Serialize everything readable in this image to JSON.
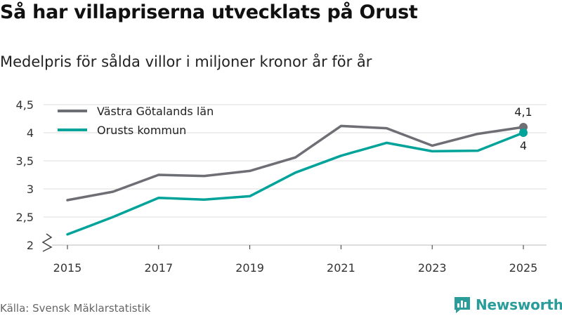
{
  "header": {
    "title": "Så har villapriserna utvecklats på Orust",
    "subtitle": "Medelpris för sålda villor i miljoner kronor år för år"
  },
  "footer": {
    "source": "Källa: Svensk Mäklarstatistik",
    "brand": "Newsworthy"
  },
  "colors": {
    "vastra": "#6e6e75",
    "orust": "#00a39a",
    "grid": "#dcdcdc",
    "brand": "#2a9d9a"
  },
  "chart_data": {
    "type": "line",
    "title": "Så har villapriserna utvecklats på Orust",
    "subtitle": "Medelpris för sålda villor i miljoner kronor år för år",
    "xlabel": "",
    "ylabel": "",
    "x": [
      2015,
      2016,
      2017,
      2018,
      2019,
      2020,
      2021,
      2022,
      2023,
      2024,
      2025
    ],
    "xticks": [
      2015,
      2017,
      2019,
      2021,
      2023,
      2025
    ],
    "xtick_labels": [
      "2015",
      "2017",
      "2019",
      "2021",
      "2023",
      "2025"
    ],
    "ylim": [
      2,
      4.5
    ],
    "yticks": [
      2,
      2.5,
      3,
      3.5,
      4,
      4.5
    ],
    "ytick_labels": [
      "2",
      "2,5",
      "3",
      "3,5",
      "4",
      "4,5"
    ],
    "axis_break": true,
    "legend_position": "top-left",
    "series": [
      {
        "name": "Västra Götalands län",
        "color": "#6e6e75",
        "values": [
          2.8,
          2.95,
          3.25,
          3.23,
          3.32,
          3.56,
          4.12,
          4.08,
          3.77,
          3.98,
          4.1
        ],
        "end_label": "4,1"
      },
      {
        "name": "Orusts kommun",
        "color": "#00a39a",
        "values": [
          2.19,
          2.5,
          2.84,
          2.81,
          2.87,
          3.29,
          3.59,
          3.82,
          3.67,
          3.68,
          4.0
        ],
        "end_label": "4"
      }
    ]
  }
}
